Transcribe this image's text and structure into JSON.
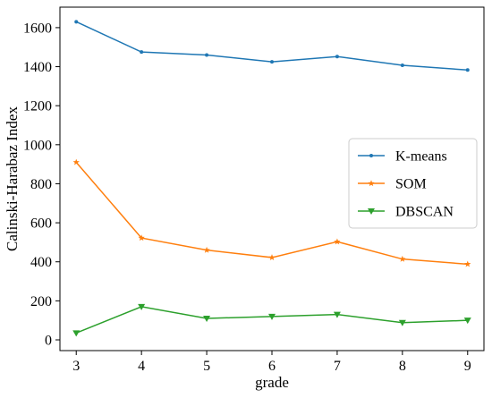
{
  "chart_data": {
    "type": "line",
    "title": "",
    "xlabel": "grade",
    "ylabel": "Calinski-Harabaz Index",
    "x": [
      3,
      4,
      5,
      6,
      7,
      8,
      9
    ],
    "xticks": [
      "3",
      "4",
      "5",
      "6",
      "7",
      "8",
      "9"
    ],
    "xlim": [
      2.75,
      9.25
    ],
    "yticks": [
      "0",
      "200",
      "400",
      "600",
      "800",
      "1000",
      "1200",
      "1400",
      "1600"
    ],
    "ylim": [
      -55,
      1705
    ],
    "grid": false,
    "legend_position": "right",
    "series": [
      {
        "name": "K-means",
        "color": "#1f77b4",
        "marker": "point",
        "values": [
          1630,
          1475,
          1460,
          1425,
          1452,
          1407,
          1383
        ]
      },
      {
        "name": "SOM",
        "color": "#ff7f0e",
        "marker": "star",
        "values": [
          910,
          522,
          460,
          422,
          503,
          414,
          388
        ]
      },
      {
        "name": "DBSCAN",
        "color": "#2ca02c",
        "marker": "triangle-down",
        "values": [
          35,
          170,
          110,
          120,
          130,
          88,
          100
        ]
      }
    ]
  }
}
